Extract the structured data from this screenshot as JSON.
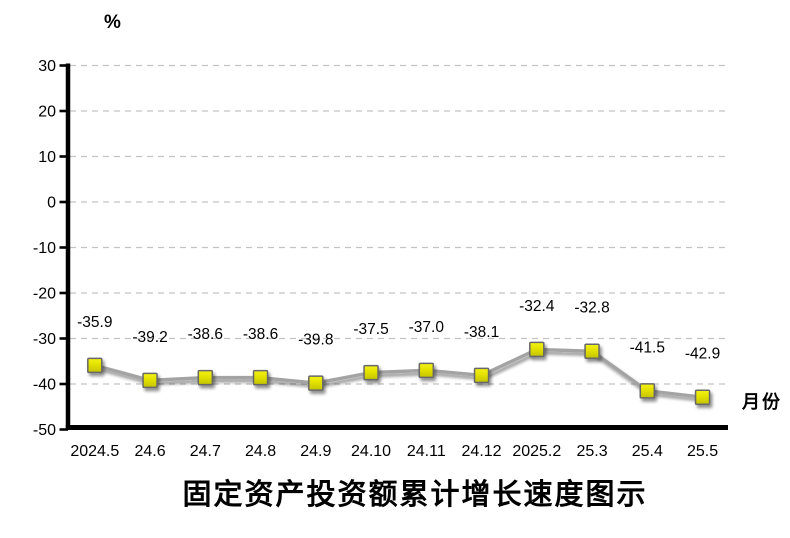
{
  "chart_data": {
    "type": "line",
    "title": "固定资产投资额累计增长速度图示",
    "ylabel": "%",
    "xlabel": "月份",
    "categories": [
      "2024.5",
      "24.6",
      "24.7",
      "24.8",
      "24.9",
      "24.10",
      "24.11",
      "24.12",
      "2025.2",
      "25.3",
      "25.4",
      "25.5"
    ],
    "values": [
      -35.9,
      -39.2,
      -38.6,
      -38.6,
      -39.8,
      -37.5,
      -37.0,
      -38.1,
      -32.4,
      -32.8,
      -41.5,
      -42.9
    ],
    "point_labels": [
      "-35.9",
      "-39.2",
      "-38.6",
      "-38.6",
      "-39.8",
      "-37.5",
      "-37.0",
      "-38.1",
      "-32.4",
      "-32.8",
      "-41.5",
      "-42.9"
    ],
    "ylim": [
      -50,
      30
    ],
    "yticks": [
      30,
      20,
      10,
      0,
      -10,
      -20,
      -30,
      -40,
      -50
    ],
    "grid": true,
    "legend": "none",
    "colors": {
      "line": "#a3a3a3",
      "grid": "#c3c3c3",
      "axis": "#000000",
      "text": "#000000",
      "marker_fill_top": "#f0ee00",
      "marker_fill_bottom": "#c8c800",
      "marker_border": "#686868"
    }
  }
}
